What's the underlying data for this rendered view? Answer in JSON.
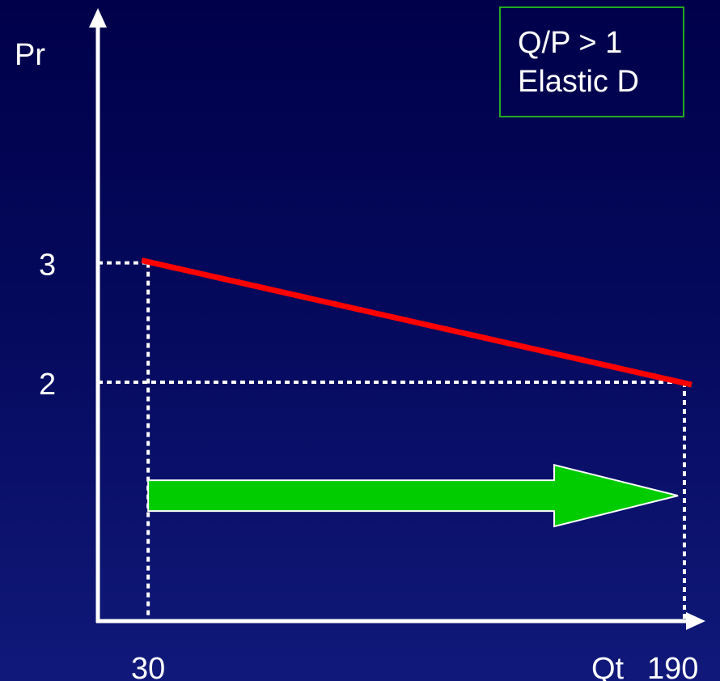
{
  "colors": {
    "background": "#05095c",
    "axis": "#ffffff",
    "demand_line": "#ff0000",
    "guide": "#ffffff",
    "arrow_fill": "#00cc00",
    "arrow_outline": "#ffffff",
    "box_border": "#22aa22"
  },
  "legend": {
    "line1": "Q/P > 1",
    "line2": "Elastic D"
  },
  "chart_data": {
    "type": "line",
    "title": "",
    "ylabel": "Pr",
    "xlabel": "Qt",
    "x_ticks": [
      {
        "value": 30,
        "label": "30"
      },
      {
        "value": 190,
        "label": "190"
      }
    ],
    "y_ticks": [
      {
        "value": 3,
        "label": "3"
      },
      {
        "value": 2,
        "label": "2"
      }
    ],
    "xlim": [
      15,
      190
    ],
    "ylim": [
      0,
      3.37
    ],
    "series": [
      {
        "points": [
          [
            30,
            3
          ],
          [
            190,
            2
          ]
        ]
      }
    ],
    "annotations": [
      {
        "type": "arrow",
        "from_x": 30,
        "to_x": 190,
        "y": 1.05
      }
    ]
  }
}
